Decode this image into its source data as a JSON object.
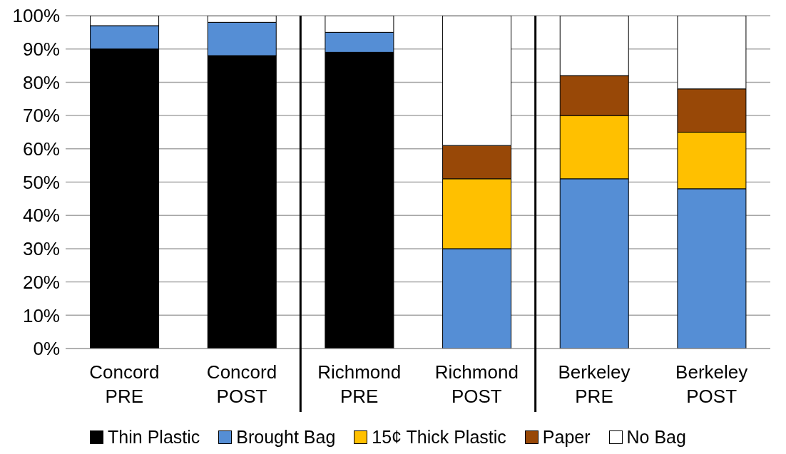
{
  "chart_data": {
    "type": "bar",
    "stacked": true,
    "categories": [
      "Concord\nPRE",
      "Concord\nPOST",
      "Richmond\nPRE",
      "Richmond\nPOST",
      "Berkeley\nPRE",
      "Berkeley\nPOST"
    ],
    "series": [
      {
        "name": "Thin Plastic",
        "color": "#000000",
        "values": [
          90,
          88,
          89,
          0,
          0,
          0
        ]
      },
      {
        "name": "Brought Bag",
        "color": "#558ed5",
        "values": [
          7,
          10,
          6,
          30,
          51,
          48
        ]
      },
      {
        "name": "15¢ Thick Plastic",
        "color": "#ffc000",
        "values": [
          0,
          0,
          0,
          21,
          19,
          17
        ]
      },
      {
        "name": "Paper",
        "color": "#984807",
        "values": [
          0,
          0,
          0,
          10,
          12,
          13
        ]
      },
      {
        "name": "No Bag",
        "color": "#ffffff",
        "values": [
          3,
          2,
          5,
          39,
          18,
          22
        ]
      }
    ],
    "ylim": [
      0,
      100
    ],
    "yticks": [
      {
        "value": 0,
        "label": "0%"
      },
      {
        "value": 10,
        "label": "10%"
      },
      {
        "value": 20,
        "label": "20%"
      },
      {
        "value": 30,
        "label": "30%"
      },
      {
        "value": 40,
        "label": "40%"
      },
      {
        "value": 50,
        "label": "50%"
      },
      {
        "value": 60,
        "label": "60%"
      },
      {
        "value": 70,
        "label": "70%"
      },
      {
        "value": 80,
        "label": "80%"
      },
      {
        "value": 90,
        "label": "90%"
      },
      {
        "value": 100,
        "label": "100%"
      }
    ],
    "grid": "y",
    "legend": "bottom"
  }
}
